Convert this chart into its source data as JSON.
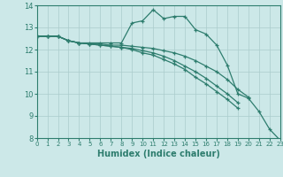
{
  "xlabel": "Humidex (Indice chaleur)",
  "x_values": [
    0,
    1,
    2,
    3,
    4,
    5,
    6,
    7,
    8,
    9,
    10,
    11,
    12,
    13,
    14,
    15,
    16,
    17,
    18,
    19,
    20,
    21,
    22,
    23
  ],
  "series": [
    {
      "y": [
        12.6,
        12.6,
        12.6,
        12.4,
        12.3,
        12.3,
        12.3,
        12.3,
        12.3,
        13.2,
        13.3,
        13.8,
        13.4,
        13.5,
        13.5,
        12.9,
        12.7,
        12.2,
        11.3,
        10.0,
        9.8,
        9.2,
        8.4,
        7.9
      ],
      "color": "#2e7d6e"
    },
    {
      "y": [
        12.6,
        12.6,
        12.6,
        12.4,
        12.3,
        12.25,
        12.2,
        12.15,
        12.1,
        12.0,
        11.85,
        11.75,
        11.55,
        11.35,
        11.1,
        10.75,
        10.45,
        10.1,
        9.75,
        9.35,
        null,
        null,
        null,
        null
      ],
      "color": "#2e7d6e"
    },
    {
      "y": [
        12.6,
        12.6,
        12.6,
        12.4,
        12.3,
        12.25,
        12.2,
        12.15,
        12.1,
        12.05,
        11.95,
        11.85,
        11.7,
        11.5,
        11.25,
        11.0,
        10.7,
        10.35,
        10.0,
        9.6,
        null,
        null,
        null,
        null
      ],
      "color": "#2e7d6e"
    },
    {
      "y": [
        12.6,
        12.6,
        12.6,
        12.4,
        12.3,
        12.25,
        12.25,
        12.2,
        12.2,
        12.15,
        12.1,
        12.05,
        11.95,
        11.85,
        11.7,
        11.5,
        11.25,
        11.0,
        10.65,
        10.2,
        9.85,
        null,
        null,
        null
      ],
      "color": "#2e7d6e"
    }
  ],
  "background_color": "#cce8e8",
  "grid_color": "#aacccc",
  "line_color": "#2e7d6e",
  "ylim": [
    8,
    14
  ],
  "xlim": [
    0,
    23
  ],
  "yticks": [
    8,
    9,
    10,
    11,
    12,
    13,
    14
  ],
  "xticks": [
    0,
    1,
    2,
    3,
    4,
    5,
    6,
    7,
    8,
    9,
    10,
    11,
    12,
    13,
    14,
    15,
    16,
    17,
    18,
    19,
    20,
    21,
    22,
    23
  ]
}
